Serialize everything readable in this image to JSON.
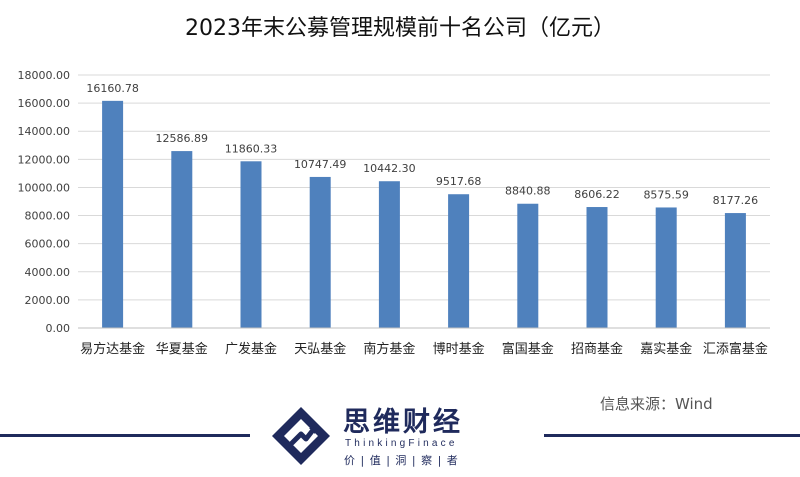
{
  "chart_data": {
    "type": "bar",
    "title": "2023年末公募管理规模前十名公司（亿元）",
    "categories": [
      "易方达基金",
      "华夏基金",
      "广发基金",
      "天弘基金",
      "南方基金",
      "博时基金",
      "富国基金",
      "招商基金",
      "嘉实基金",
      "汇添富基金"
    ],
    "values": [
      16160.78,
      12586.89,
      11860.33,
      10747.49,
      10442.3,
      9517.68,
      8840.88,
      8606.22,
      8575.59,
      8177.26
    ],
    "data_labels": [
      "16160.78",
      "12586.89",
      "11860.33",
      "10747.49",
      "10442.30",
      "9517.68",
      "8840.88",
      "8606.22",
      "8575.59",
      "8177.26"
    ],
    "y_ticks": [
      "0.00",
      "2000.00",
      "4000.00",
      "6000.00",
      "8000.00",
      "10000.00",
      "12000.00",
      "14000.00",
      "16000.00",
      "18000.00"
    ],
    "ylim": [
      0,
      18000
    ],
    "grid": true,
    "bar_color": "#4f81bd"
  },
  "source": "信息来源：Wind",
  "brand": {
    "name_cn": "思维财经",
    "name_en": "ThinkingFinace",
    "slogan": "价 | 值 | 洞 | 察 | 者",
    "color": "#1f2a5c"
  }
}
